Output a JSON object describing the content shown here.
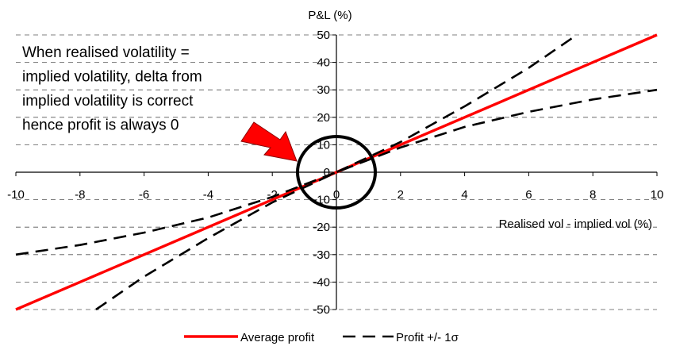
{
  "chart_data": {
    "type": "line",
    "title": "",
    "xlabel": "Realised vol - implied vol (%)",
    "ylabel": "P&L (%)",
    "xlim": [
      -10,
      10
    ],
    "ylim": [
      -50,
      50
    ],
    "x_ticks": [
      "-10",
      "-8",
      "-6",
      "-4",
      "-2",
      "0",
      "2",
      "4",
      "6",
      "8",
      "10"
    ],
    "y_ticks": [
      "50",
      "40",
      "30",
      "20",
      "10",
      "0",
      "-10",
      "-20",
      "-30",
      "-40",
      "-50"
    ],
    "grid": "horizontal dashed",
    "legend_position": "bottom",
    "series": [
      {
        "name": "Average profit",
        "color": "#ff0000",
        "style": "solid",
        "points": [
          [
            -10,
            -50
          ],
          [
            -8,
            -40
          ],
          [
            -6,
            -30
          ],
          [
            -4,
            -20
          ],
          [
            -2,
            -10
          ],
          [
            0,
            0
          ],
          [
            2,
            10
          ],
          [
            4,
            20
          ],
          [
            6,
            30
          ],
          [
            8,
            40
          ],
          [
            10,
            50
          ]
        ]
      },
      {
        "name": "Profit +/- 1σ",
        "color": "#000000",
        "style": "dashed",
        "points": [
          [
            -10,
            -30
          ],
          [
            -8,
            -26.5
          ],
          [
            -6,
            -22
          ],
          [
            -4,
            -16.5
          ],
          [
            -2,
            -9
          ],
          [
            0,
            0
          ],
          [
            2,
            9
          ],
          [
            4,
            16.5
          ],
          [
            6,
            22
          ],
          [
            8,
            26.5
          ],
          [
            10,
            30
          ]
        ]
      },
      {
        "name": "",
        "color": "#000000",
        "style": "dashed",
        "points": [
          [
            -7.5,
            -50
          ],
          [
            -6,
            -38
          ],
          [
            -4,
            -24
          ],
          [
            -2,
            -11
          ],
          [
            0,
            0
          ],
          [
            2,
            11
          ],
          [
            4,
            24
          ],
          [
            6,
            38
          ],
          [
            7.5,
            50
          ]
        ]
      }
    ],
    "annotation": {
      "lines": [
        "When realised volatility =",
        "implied volatility, delta from",
        "implied volatility is correct",
        "hence profit is always 0"
      ],
      "arrow_color": "#ff0000",
      "circle_center": [
        0,
        0
      ]
    }
  }
}
